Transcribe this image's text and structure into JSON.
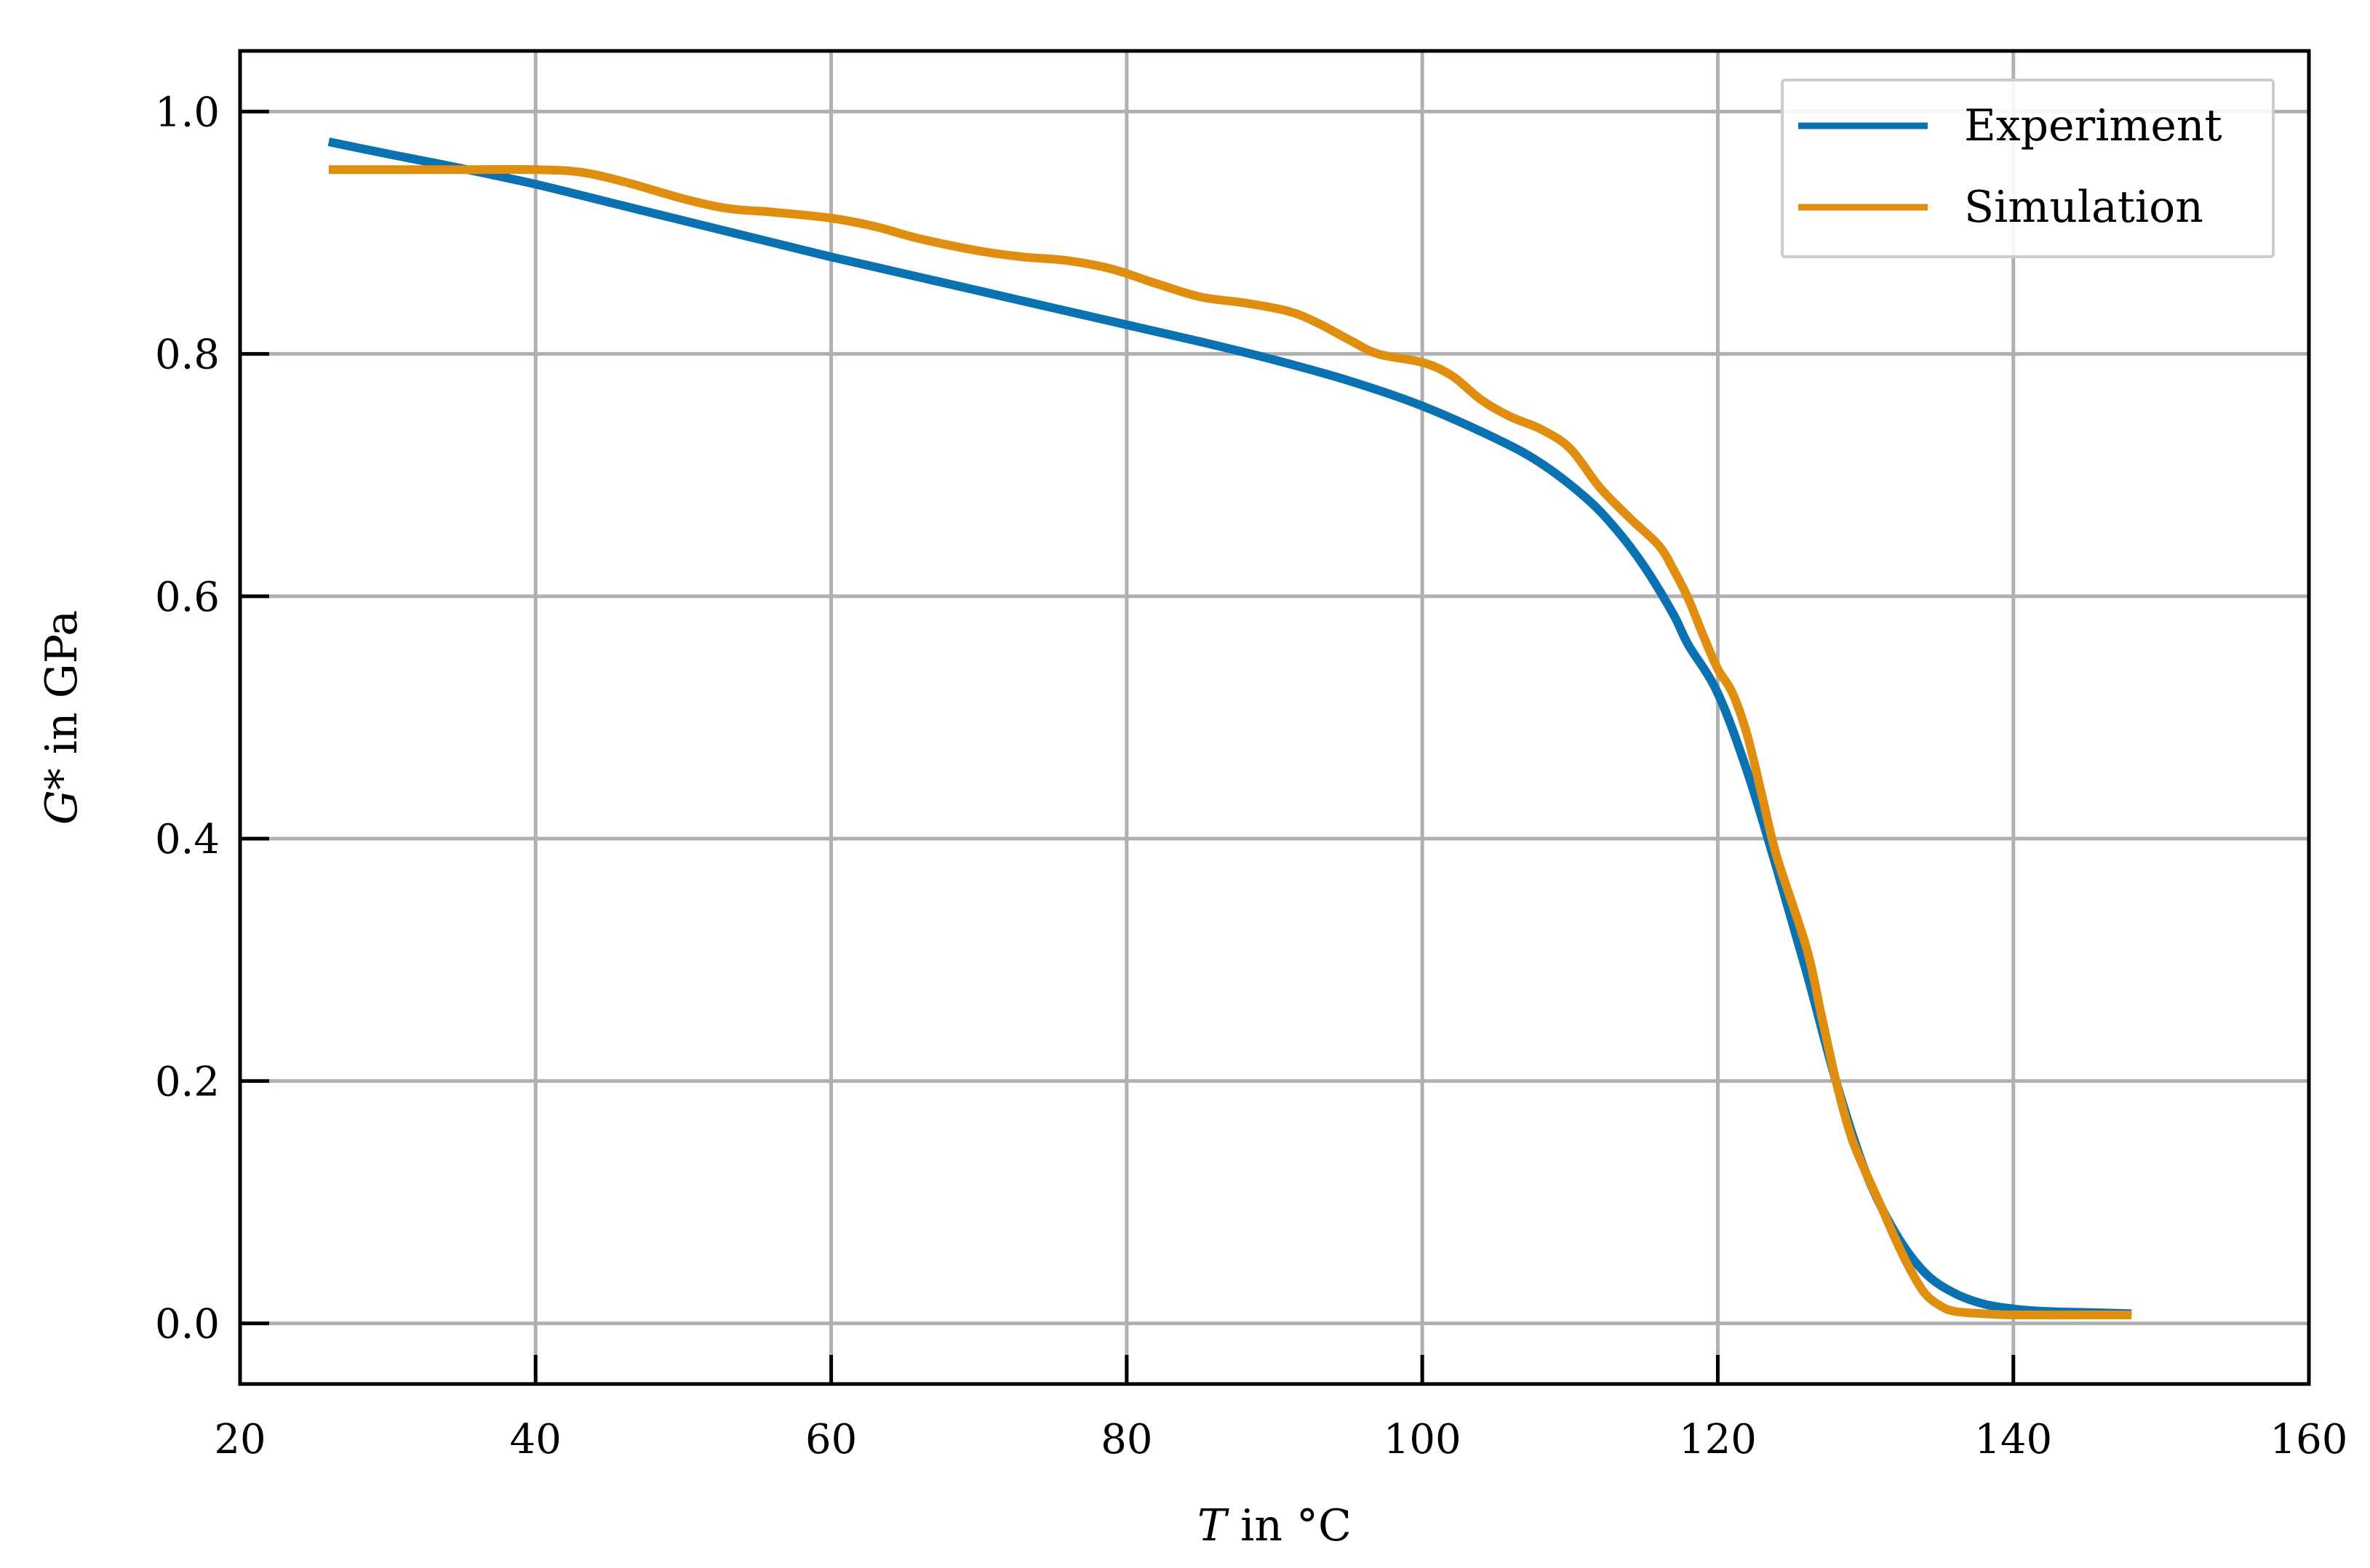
{
  "chart_data": {
    "type": "line",
    "title": "",
    "xlabel": {
      "var": "T",
      "rest": " in °C"
    },
    "ylabel": {
      "var": "G*",
      "rest": " in GPa"
    },
    "xlim": [
      20,
      160
    ],
    "ylim": [
      -0.05,
      1.05
    ],
    "grid": true,
    "legend_position": "top-right",
    "x_ticks": [
      "20",
      "40",
      "60",
      "80",
      "100",
      "120",
      "140",
      "160"
    ],
    "y_ticks": [
      "0.0",
      "0.2",
      "0.4",
      "0.6",
      "0.8",
      "1.0"
    ],
    "series": [
      {
        "name": "Experiment",
        "color": "#0a72b1",
        "x": [
          26,
          30,
          35,
          40,
          45,
          50,
          55,
          60,
          65,
          70,
          75,
          80,
          85,
          90,
          95,
          100,
          105,
          108,
          111,
          113,
          115,
          117,
          118,
          120,
          122,
          124,
          126,
          128,
          130,
          132,
          134,
          136,
          138,
          140,
          142,
          145,
          148
        ],
        "y": [
          0.975,
          0.965,
          0.953,
          0.94,
          0.925,
          0.91,
          0.895,
          0.88,
          0.866,
          0.852,
          0.838,
          0.824,
          0.81,
          0.795,
          0.778,
          0.757,
          0.73,
          0.71,
          0.682,
          0.657,
          0.625,
          0.585,
          0.56,
          0.52,
          0.455,
          0.375,
          0.29,
          0.2,
          0.125,
          0.075,
          0.042,
          0.025,
          0.016,
          0.012,
          0.01,
          0.009,
          0.008
        ]
      },
      {
        "name": "Simulation",
        "color": "#e08e10",
        "x": [
          26,
          30,
          35,
          40,
          43,
          46,
          50,
          53,
          56,
          60,
          63,
          66,
          70,
          73,
          76,
          79,
          82,
          85,
          88,
          91,
          93,
          95,
          97,
          100,
          102,
          104,
          106,
          108,
          110,
          112,
          114,
          116,
          117,
          118,
          119,
          120,
          121,
          122,
          123,
          124,
          126,
          127,
          128,
          129,
          130,
          131,
          132,
          133,
          134,
          135,
          136,
          138,
          140,
          145,
          148
        ],
        "y": [
          0.952,
          0.952,
          0.952,
          0.952,
          0.95,
          0.942,
          0.928,
          0.92,
          0.917,
          0.912,
          0.905,
          0.895,
          0.885,
          0.88,
          0.877,
          0.87,
          0.858,
          0.847,
          0.842,
          0.835,
          0.825,
          0.812,
          0.8,
          0.793,
          0.782,
          0.762,
          0.748,
          0.738,
          0.722,
          0.69,
          0.665,
          0.642,
          0.622,
          0.598,
          0.568,
          0.54,
          0.52,
          0.485,
          0.435,
          0.385,
          0.31,
          0.255,
          0.2,
          0.155,
          0.125,
          0.098,
          0.07,
          0.045,
          0.025,
          0.015,
          0.01,
          0.008,
          0.007,
          0.007,
          0.007
        ]
      }
    ]
  }
}
